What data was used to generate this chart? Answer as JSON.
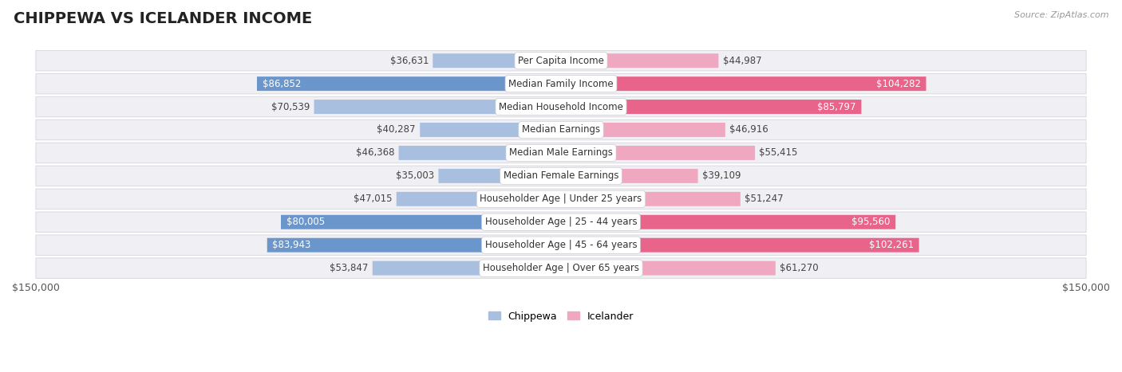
{
  "title": "CHIPPEWA VS ICELANDER INCOME",
  "source": "Source: ZipAtlas.com",
  "categories": [
    "Per Capita Income",
    "Median Family Income",
    "Median Household Income",
    "Median Earnings",
    "Median Male Earnings",
    "Median Female Earnings",
    "Householder Age | Under 25 years",
    "Householder Age | 25 - 44 years",
    "Householder Age | 45 - 64 years",
    "Householder Age | Over 65 years"
  ],
  "chippewa_values": [
    36631,
    86852,
    70539,
    40287,
    46368,
    35003,
    47015,
    80005,
    83943,
    53847
  ],
  "icelander_values": [
    44987,
    104282,
    85797,
    46916,
    55415,
    39109,
    51247,
    95560,
    102261,
    61270
  ],
  "max_value": 150000,
  "chippewa_color_light": "#a8bfe0",
  "chippewa_color_dark": "#6b96cc",
  "icelander_color_light": "#f0a8c0",
  "icelander_color_dark": "#e8648a",
  "bg_color": "#ffffff",
  "row_bg_color": "#f0f0f4",
  "row_border_color": "#d8d8e0",
  "title_fontsize": 14,
  "label_fontsize": 8.5,
  "value_fontsize": 8.5,
  "dark_threshold": 75000,
  "legend_label_chippewa": "Chippewa",
  "legend_label_icelander": "Icelander"
}
